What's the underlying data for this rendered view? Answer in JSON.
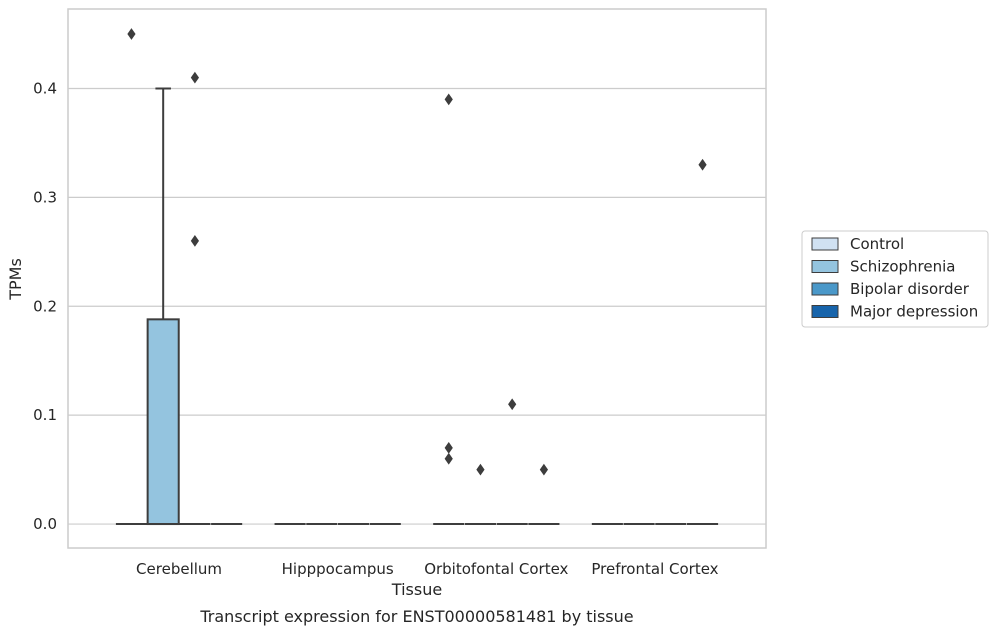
{
  "chart_data": {
    "type": "box",
    "xlabel": "Tissue",
    "ylabel": "TPMs",
    "caption": "Transcript expression for ENST00000581481 by tissue",
    "ylim": [
      -0.022,
      0.473
    ],
    "yticks": [
      0.0,
      0.1,
      0.2,
      0.3,
      0.4
    ],
    "ytick_labels": [
      "0.0",
      "0.1",
      "0.2",
      "0.3",
      "0.4"
    ],
    "grid": "horizontal",
    "categories": [
      "Cerebellum",
      "Hipppocampus",
      "Orbitofontal Cortex",
      "Prefrontal Cortex"
    ],
    "series": [
      {
        "name": "Control",
        "color": "#d0e1f2"
      },
      {
        "name": "Schizophrenia",
        "color": "#94c4df"
      },
      {
        "name": "Bipolar disorder",
        "color": "#4a98c9"
      },
      {
        "name": "Major depression",
        "color": "#1764ab"
      }
    ],
    "boxes": [
      {
        "category": 0,
        "series": 0,
        "q1": 0,
        "median": 0,
        "q3": 0,
        "whislo": 0,
        "whishi": 0,
        "fliers": [
          0.45
        ]
      },
      {
        "category": 0,
        "series": 1,
        "q1": 0,
        "median": 0,
        "q3": 0.188,
        "whislo": 0,
        "whishi": 0.4,
        "fliers": []
      },
      {
        "category": 0,
        "series": 2,
        "q1": 0,
        "median": 0,
        "q3": 0,
        "whislo": 0,
        "whishi": 0,
        "fliers": [
          0.41,
          0.26
        ]
      },
      {
        "category": 0,
        "series": 3,
        "q1": 0,
        "median": 0,
        "q3": 0,
        "whislo": 0,
        "whishi": 0,
        "fliers": []
      },
      {
        "category": 1,
        "series": 0,
        "q1": 0,
        "median": 0,
        "q3": 0,
        "whislo": 0,
        "whishi": 0,
        "fliers": []
      },
      {
        "category": 1,
        "series": 1,
        "q1": 0,
        "median": 0,
        "q3": 0,
        "whislo": 0,
        "whishi": 0,
        "fliers": []
      },
      {
        "category": 1,
        "series": 2,
        "q1": 0,
        "median": 0,
        "q3": 0,
        "whislo": 0,
        "whishi": 0,
        "fliers": []
      },
      {
        "category": 1,
        "series": 3,
        "q1": 0,
        "median": 0,
        "q3": 0,
        "whislo": 0,
        "whishi": 0,
        "fliers": []
      },
      {
        "category": 2,
        "series": 0,
        "q1": 0,
        "median": 0,
        "q3": 0,
        "whislo": 0,
        "whishi": 0,
        "fliers": [
          0.39,
          0.07,
          0.06
        ]
      },
      {
        "category": 2,
        "series": 1,
        "q1": 0,
        "median": 0,
        "q3": 0,
        "whislo": 0,
        "whishi": 0,
        "fliers": [
          0.05
        ]
      },
      {
        "category": 2,
        "series": 2,
        "q1": 0,
        "median": 0,
        "q3": 0,
        "whislo": 0,
        "whishi": 0,
        "fliers": [
          0.11
        ]
      },
      {
        "category": 2,
        "series": 3,
        "q1": 0,
        "median": 0,
        "q3": 0,
        "whislo": 0,
        "whishi": 0,
        "fliers": [
          0.05
        ]
      },
      {
        "category": 3,
        "series": 0,
        "q1": 0,
        "median": 0,
        "q3": 0,
        "whislo": 0,
        "whishi": 0,
        "fliers": []
      },
      {
        "category": 3,
        "series": 1,
        "q1": 0,
        "median": 0,
        "q3": 0,
        "whislo": 0,
        "whishi": 0,
        "fliers": []
      },
      {
        "category": 3,
        "series": 2,
        "q1": 0,
        "median": 0,
        "q3": 0,
        "whislo": 0,
        "whishi": 0,
        "fliers": []
      },
      {
        "category": 3,
        "series": 3,
        "q1": 0,
        "median": 0,
        "q3": 0,
        "whislo": 0,
        "whishi": 0,
        "fliers": [
          0.33
        ]
      }
    ],
    "legend_position": "right"
  }
}
